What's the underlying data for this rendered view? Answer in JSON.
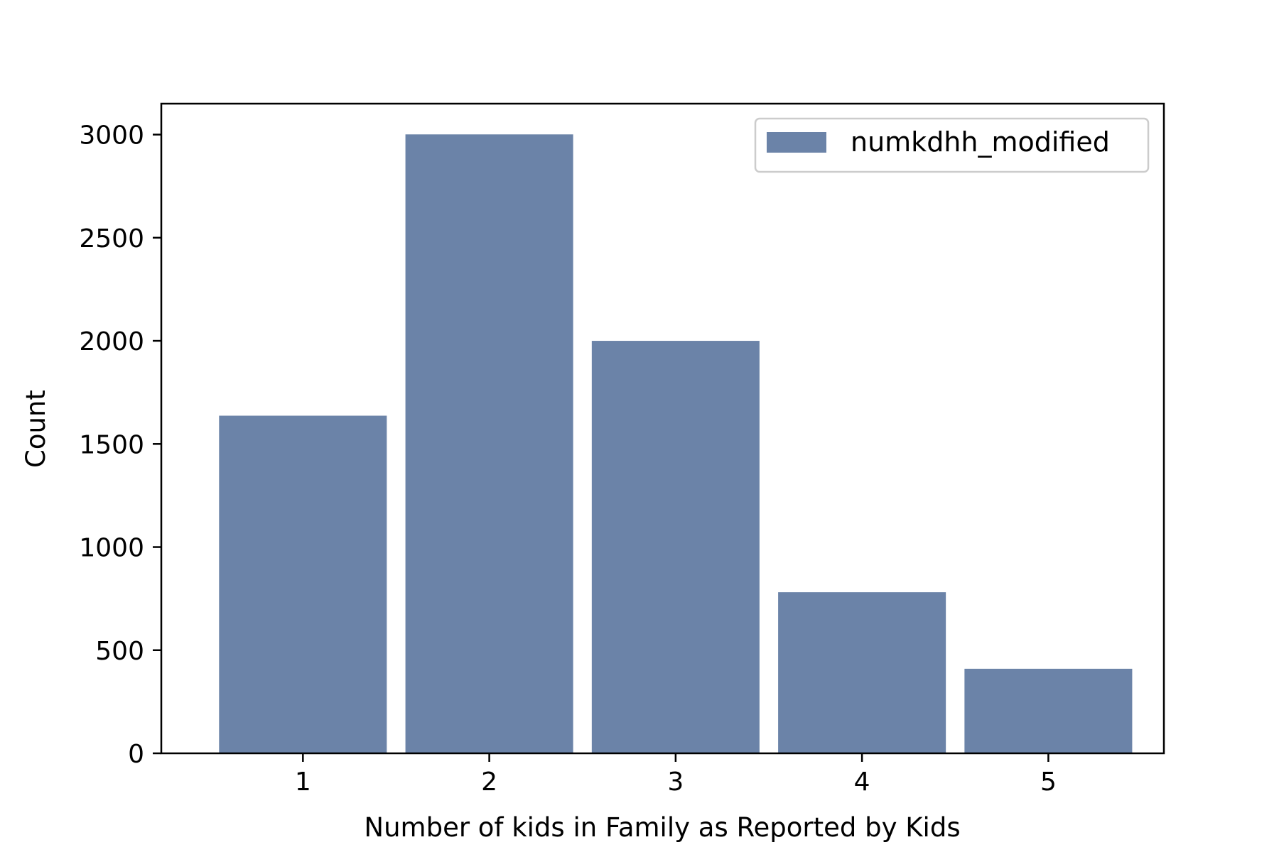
{
  "chart_data": {
    "type": "bar",
    "title": "",
    "xlabel": "Number of kids in Family as Reported by Kids",
    "ylabel": "Count",
    "categories": [
      "1",
      "2",
      "3",
      "4",
      "5"
    ],
    "series": [
      {
        "name": "numkdhh_modified",
        "values": [
          1637,
          3001,
          2000,
          781,
          410
        ],
        "color": "#6b83a8"
      }
    ],
    "yticks": [
      "0",
      "500",
      "1000",
      "1500",
      "2000",
      "2500",
      "3000"
    ],
    "ytick_values": [
      0,
      500,
      1000,
      1500,
      2000,
      2500,
      3000
    ],
    "ylim": [
      0,
      3150
    ],
    "xlim": [
      0.24,
      5.62
    ],
    "grid": false,
    "legend_position": "top-right"
  }
}
